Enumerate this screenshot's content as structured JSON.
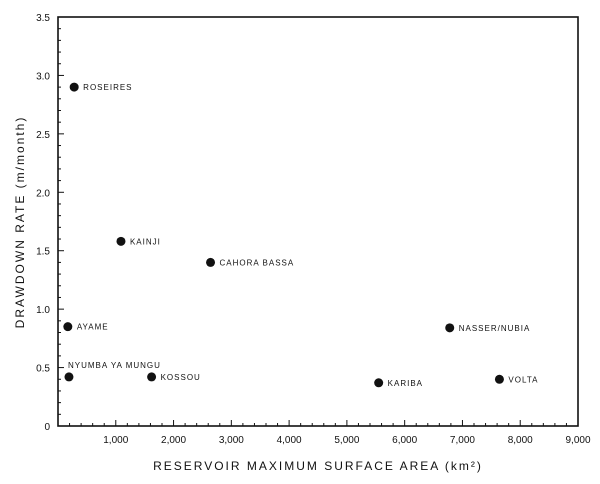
{
  "chart_data": {
    "type": "scatter",
    "title": "",
    "xlabel": "RESERVOIR MAXIMUM SURFACE AREA (km²)",
    "ylabel": "DRAWDOWN RATE (m/month)",
    "xlim": [
      0,
      9000
    ],
    "ylim": [
      0,
      3.5
    ],
    "x_ticks": [
      0,
      1000,
      2000,
      3000,
      4000,
      5000,
      6000,
      7000,
      8000,
      9000
    ],
    "x_tick_labels": [
      "",
      "1,000",
      "2,000",
      "3,000",
      "4,000",
      "5,000",
      "6,000",
      "7,000",
      "8,000",
      "9,000"
    ],
    "y_ticks": [
      0,
      0.5,
      1.0,
      1.5,
      2.0,
      2.5,
      3.0,
      3.5
    ],
    "y_tick_labels": [
      "0",
      "0.5",
      "1.0",
      "1.5",
      "2.0",
      "2.5",
      "3.0",
      "3.5"
    ],
    "grid": false,
    "legend": null,
    "points": [
      {
        "label": "ROSEIRES",
        "x": 280,
        "y": 2.9,
        "label_pos": "right"
      },
      {
        "label": "KAINJI",
        "x": 1090,
        "y": 1.58,
        "label_pos": "right"
      },
      {
        "label": "CAHORA BASSA",
        "x": 2640,
        "y": 1.4,
        "label_pos": "right"
      },
      {
        "label": "AYAME",
        "x": 170,
        "y": 0.85,
        "label_pos": "right"
      },
      {
        "label": "NYUMBA YA MUNGU",
        "x": 190,
        "y": 0.42,
        "label_pos": "above"
      },
      {
        "label": "KOSSOU",
        "x": 1620,
        "y": 0.42,
        "label_pos": "right"
      },
      {
        "label": "KARIBA",
        "x": 5550,
        "y": 0.37,
        "label_pos": "right"
      },
      {
        "label": "NASSER/NUBIA",
        "x": 6780,
        "y": 0.84,
        "label_pos": "right"
      },
      {
        "label": "VOLTA",
        "x": 7640,
        "y": 0.4,
        "label_pos": "right"
      }
    ]
  },
  "colors": {
    "ink": "#111111",
    "background": "#ffffff"
  }
}
